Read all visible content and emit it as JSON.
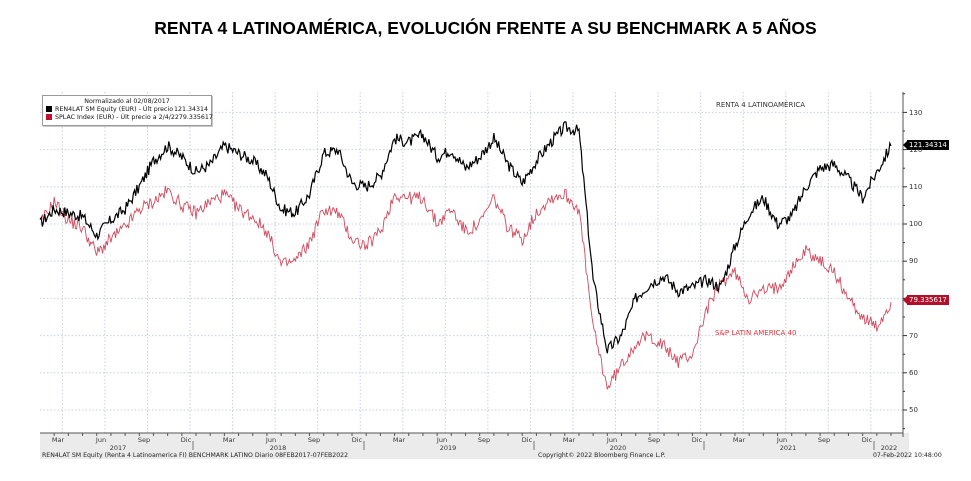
{
  "title": "RENTA 4 LATINOAMÉRICA, EVOLUCIÓN FRENTE A SU BENCHMARK A 5 AÑOS",
  "legend": {
    "header": "Normalizado al 02/08/2017",
    "items": [
      {
        "label": "REN4LAT SM Equity (EUR) - Últ precio",
        "value": "121.34314",
        "color": "#000000"
      },
      {
        "label": "SPLAC Index (EUR) - Últ precio a 2/4/22",
        "value": "79.335617",
        "color": "#c0102a"
      }
    ]
  },
  "annotations": {
    "renta4_label": "RENTA 4 LATINOAMÉRICA",
    "splac_label": "S&P LATIN AMERICA 40"
  },
  "last_value_tags": {
    "renta4": "121.34314",
    "splac": "79.335617"
  },
  "y_axis": {
    "ticks": [
      "130",
      "120",
      "110",
      "100",
      "90",
      "80",
      "70",
      "60",
      "50"
    ]
  },
  "x_axis": {
    "months": [
      "Mar",
      "Jun",
      "Sep",
      "Dic",
      "Mar",
      "Jun",
      "Sep",
      "Dic",
      "Mar",
      "Jun",
      "Sep",
      "Dic",
      "Mar",
      "Jun",
      "Sep",
      "Dic",
      "Mar",
      "Jun",
      "Sep",
      "Dic"
    ],
    "years": [
      "2017",
      "2018",
      "2019",
      "2020",
      "2021",
      "2022"
    ]
  },
  "footer": {
    "left": "REN4LAT SM Equity (Renta 4 Latinoamerica FI) BENCHMARK LATINO  Diario 08FEB2017-07FEB2022",
    "center": "Copyright© 2022 Bloomberg Finance L.P.",
    "right": "07-Feb-2022 10:48:00"
  },
  "colors": {
    "renta4": "#000000",
    "splac": "#c0102a",
    "grid": "#c8cfe0",
    "axis_band": "#e8e8e8"
  },
  "chart_data": {
    "type": "line",
    "title": "RENTA 4 LATINOAMÉRICA, EVOLUCIÓN FRENTE A SU BENCHMARK A 5 AÑOS",
    "subtitle": "Normalizado al 02/08/2017",
    "xlabel": "",
    "ylabel": "",
    "ylim": [
      44,
      136
    ],
    "grid": true,
    "legend_position": "top-left",
    "x": [
      "2017-02",
      "2017-03",
      "2017-04",
      "2017-05",
      "2017-06",
      "2017-07",
      "2017-08",
      "2017-09",
      "2017-10",
      "2017-11",
      "2017-12",
      "2018-01",
      "2018-02",
      "2018-03",
      "2018-04",
      "2018-05",
      "2018-06",
      "2018-07",
      "2018-08",
      "2018-09",
      "2018-10",
      "2018-11",
      "2018-12",
      "2019-01",
      "2019-02",
      "2019-03",
      "2019-04",
      "2019-05",
      "2019-06",
      "2019-07",
      "2019-08",
      "2019-09",
      "2019-10",
      "2019-11",
      "2019-12",
      "2020-01",
      "2020-02",
      "2020-03",
      "2020-04",
      "2020-05",
      "2020-06",
      "2020-07",
      "2020-08",
      "2020-09",
      "2020-10",
      "2020-11",
      "2020-12",
      "2021-01",
      "2021-02",
      "2021-03",
      "2021-04",
      "2021-05",
      "2021-06",
      "2021-07",
      "2021-08",
      "2021-09",
      "2021-10",
      "2021-11",
      "2021-12",
      "2022-01",
      "2022-02"
    ],
    "series": [
      {
        "name": "REN4LAT SM Equity (EUR)",
        "color": "#000000",
        "values": [
          100,
          104,
          103,
          102,
          97,
          101,
          104,
          110,
          117,
          121,
          118,
          114,
          116,
          121,
          119,
          117,
          113,
          104,
          103,
          108,
          119,
          120,
          111,
          110,
          113,
          123,
          122,
          124,
          118,
          120,
          115,
          118,
          123,
          116,
          111,
          117,
          122,
          126,
          125,
          85,
          66,
          70,
          80,
          84,
          86,
          82,
          83,
          85,
          83,
          94,
          103,
          107,
          100,
          102,
          110,
          115,
          116,
          112,
          107,
          114,
          121
        ]
      },
      {
        "name": "SPLAC Index (EUR)",
        "color": "#c0102a",
        "values": [
          100,
          106,
          101,
          99,
          92,
          96,
          99,
          104,
          106,
          109,
          105,
          103,
          106,
          108,
          104,
          102,
          98,
          89,
          90,
          95,
          104,
          103,
          96,
          94,
          98,
          108,
          107,
          107,
          100,
          104,
          98,
          100,
          107,
          99,
          96,
          103,
          107,
          108,
          104,
          72,
          56,
          62,
          68,
          70,
          67,
          63,
          65,
          77,
          84,
          87,
          80,
          82,
          83,
          88,
          93,
          90,
          87,
          80,
          75,
          72,
          79
        ]
      }
    ]
  }
}
